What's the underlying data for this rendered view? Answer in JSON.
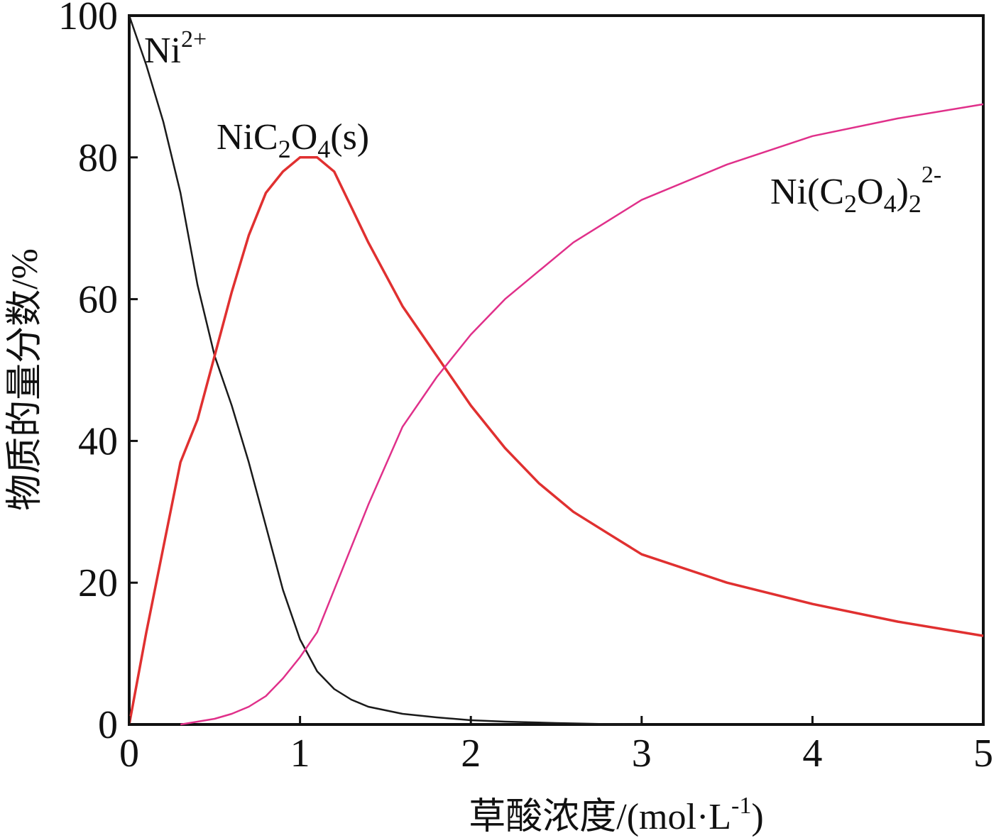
{
  "chart_data": {
    "type": "line",
    "xlabel_main": "草酸浓度/(mol·L",
    "xlabel_sup": "-1",
    "xlabel_close": ")",
    "ylabel": "物质的量分数/%",
    "xlim": [
      0,
      5
    ],
    "ylim": [
      0,
      100
    ],
    "xticks": [
      "0",
      "1",
      "2",
      "3",
      "4",
      "5"
    ],
    "yticks": [
      "0",
      "20",
      "40",
      "60",
      "80",
      "100"
    ],
    "grid": false,
    "series": [
      {
        "name": "Ni2+",
        "label_parts": [
          "Ni",
          "2+"
        ],
        "color": "#1a1a1a",
        "x": [
          0,
          0.1,
          0.2,
          0.3,
          0.4,
          0.5,
          0.6,
          0.7,
          0.8,
          0.9,
          1.0,
          1.1,
          1.2,
          1.3,
          1.4,
          1.5,
          1.6,
          1.8,
          2.0,
          2.2,
          2.5,
          2.8,
          3.0
        ],
        "y": [
          100,
          93,
          85,
          75,
          62,
          52,
          45,
          37,
          28,
          19,
          12,
          7.5,
          5,
          3.5,
          2.5,
          2,
          1.5,
          1.0,
          0.6,
          0.4,
          0.2,
          0.05,
          0
        ]
      },
      {
        "name": "NiC2O4(s)",
        "label_parts": [
          "NiC",
          "2",
          "O",
          "4",
          "(s)"
        ],
        "color": "#e03030",
        "x": [
          0,
          0.1,
          0.2,
          0.3,
          0.4,
          0.5,
          0.6,
          0.7,
          0.8,
          0.9,
          1.0,
          1.1,
          1.2,
          1.3,
          1.4,
          1.6,
          1.8,
          2.0,
          2.2,
          2.4,
          2.6,
          2.8,
          3.0,
          3.5,
          4.0,
          4.5,
          5.0
        ],
        "y": [
          0,
          13,
          25,
          37,
          43,
          52,
          61,
          69,
          75,
          78,
          80,
          80,
          78,
          73,
          68,
          59,
          52,
          45,
          39,
          34,
          30,
          27,
          24,
          20,
          17,
          14.5,
          12.5
        ]
      },
      {
        "name": "Ni(C2O4)22-",
        "label_parts": [
          "Ni(C",
          "2",
          "O",
          "4",
          ")",
          "2",
          "2-"
        ],
        "color": "#e0308a",
        "x": [
          0.3,
          0.5,
          0.6,
          0.7,
          0.8,
          0.9,
          1.0,
          1.1,
          1.2,
          1.4,
          1.6,
          1.8,
          2.0,
          2.2,
          2.4,
          2.6,
          2.8,
          3.0,
          3.5,
          4.0,
          4.5,
          5.0
        ],
        "y": [
          0,
          0.8,
          1.5,
          2.5,
          4,
          6.5,
          9.5,
          13,
          19,
          31,
          42,
          49,
          55,
          60,
          64,
          68,
          71,
          74,
          79,
          83,
          85.5,
          87.5
        ]
      }
    ]
  }
}
